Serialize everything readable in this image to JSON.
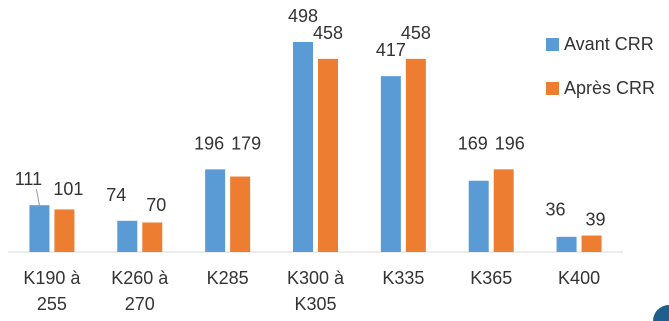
{
  "chart_data": {
    "type": "bar",
    "categories": [
      "K190 à 255",
      "K260 à 270",
      "K285",
      "K300 à K305",
      "K335",
      "K365",
      "K400"
    ],
    "tick_lines": [
      [
        "K190 à",
        "255"
      ],
      [
        "K260 à",
        "270"
      ],
      [
        "K285"
      ],
      [
        "K300 à",
        "K305"
      ],
      [
        "K335"
      ],
      [
        "K365"
      ],
      [
        "K400"
      ]
    ],
    "series": [
      {
        "name": "Avant CRR",
        "color": "#5b9bd5",
        "values": [
          111,
          74,
          196,
          498,
          417,
          169,
          36
        ]
      },
      {
        "name": "Après CRR",
        "color": "#ed7d31",
        "values": [
          101,
          70,
          179,
          458,
          458,
          196,
          39
        ]
      }
    ],
    "ylim": [
      0,
      520
    ],
    "grid": false,
    "legend": "right",
    "title": "",
    "xlabel": "",
    "ylabel": ""
  }
}
